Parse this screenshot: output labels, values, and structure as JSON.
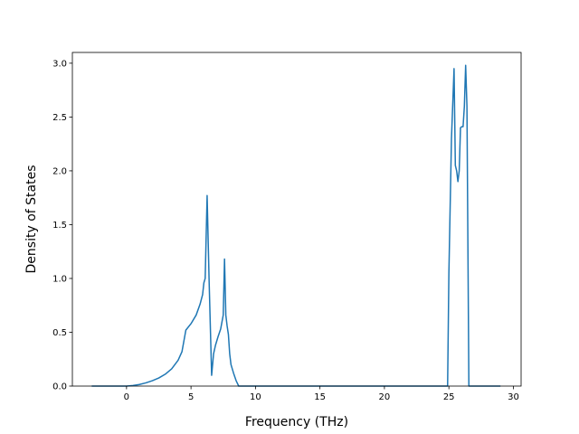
{
  "chart_data": {
    "type": "line",
    "title": "",
    "xlabel": "Frequency (THz)",
    "ylabel": "Density of States",
    "xlim": [
      -4.2,
      30.6
    ],
    "ylim": [
      0,
      3.1
    ],
    "xticks": [
      0,
      5,
      10,
      15,
      20,
      25,
      30
    ],
    "yticks": [
      0.0,
      0.5,
      1.0,
      1.5,
      2.0,
      2.5,
      3.0
    ],
    "ytick_labels": [
      "0.0",
      "0.5",
      "1.0",
      "1.5",
      "2.0",
      "2.5",
      "3.0"
    ],
    "grid": false,
    "legend": "none",
    "series": [
      {
        "color": "#1f77b4",
        "x": [
          -2.7,
          0,
          0.5,
          1,
          1.5,
          2,
          2.5,
          3,
          3.5,
          4,
          4.3,
          4.6,
          5.0,
          5.4,
          5.7,
          5.9,
          6.0,
          6.1,
          6.25,
          6.4,
          6.6,
          6.75,
          6.9,
          7.1,
          7.3,
          7.5,
          7.6,
          7.7,
          7.8,
          7.9,
          8.0,
          8.1,
          8.3,
          8.5,
          8.7,
          9,
          10,
          15,
          20,
          24.9,
          25.0,
          25.2,
          25.4,
          25.5,
          25.6,
          25.7,
          25.8,
          25.9,
          26.0,
          26.1,
          26.2,
          26.3,
          26.4,
          26.55,
          26.7,
          27,
          29
        ],
        "y": [
          0,
          0,
          0.005,
          0.015,
          0.03,
          0.05,
          0.075,
          0.11,
          0.16,
          0.24,
          0.32,
          0.52,
          0.58,
          0.66,
          0.76,
          0.85,
          0.96,
          1.0,
          1.77,
          1.0,
          0.1,
          0.3,
          0.38,
          0.46,
          0.53,
          0.66,
          1.18,
          0.66,
          0.56,
          0.48,
          0.3,
          0.2,
          0.12,
          0.05,
          0,
          0,
          0,
          0,
          0,
          0,
          1.05,
          2.3,
          2.95,
          2.05,
          2.0,
          1.9,
          2.0,
          2.4,
          2.41,
          2.41,
          2.6,
          2.98,
          2.6,
          0,
          0,
          0,
          0
        ]
      }
    ]
  }
}
